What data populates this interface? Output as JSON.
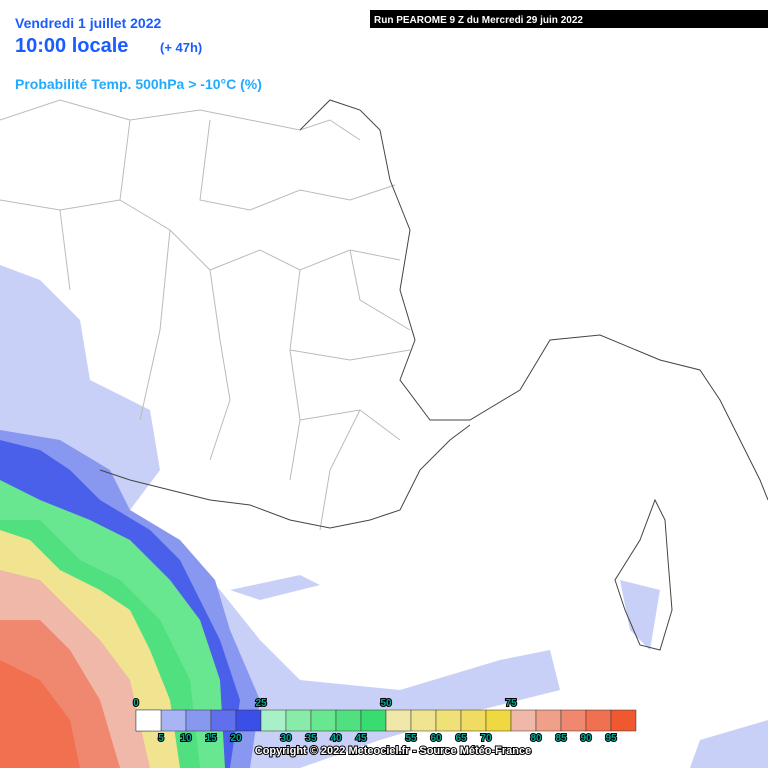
{
  "header": {
    "date": "Vendredi 1 juillet 2022",
    "time": "10:00 locale",
    "offset": "(+ 47h)",
    "parameter": "Probabilité Temp. 500hPa > -10°C (%)"
  },
  "run": "Run PEAROME 9 Z du Mercredi 29 juin 2022",
  "legend": {
    "colors": [
      "#ffffff",
      "#c8d0f8",
      "#a8b4f4",
      "#8898f0",
      "#6070ec",
      "#3a4ee8",
      "#a8f0c8",
      "#88eca8",
      "#68e690",
      "#50e080",
      "#38dc70",
      "#f0e8a8",
      "#f0e490",
      "#f0e078",
      "#f0dc60",
      "#f0d840",
      "#f0b8a8",
      "#f0a088",
      "#f08870",
      "#f07050",
      "#f05830"
    ],
    "labels_top": [
      0,
      25,
      50,
      75
    ],
    "labels_bottom": [
      5,
      10,
      15,
      20,
      30,
      35,
      40,
      45,
      55,
      60,
      65,
      70,
      80,
      85,
      90,
      95
    ]
  },
  "copyright": "Copyright © 2022 Meteociel.fr - Source Météo-France"
}
